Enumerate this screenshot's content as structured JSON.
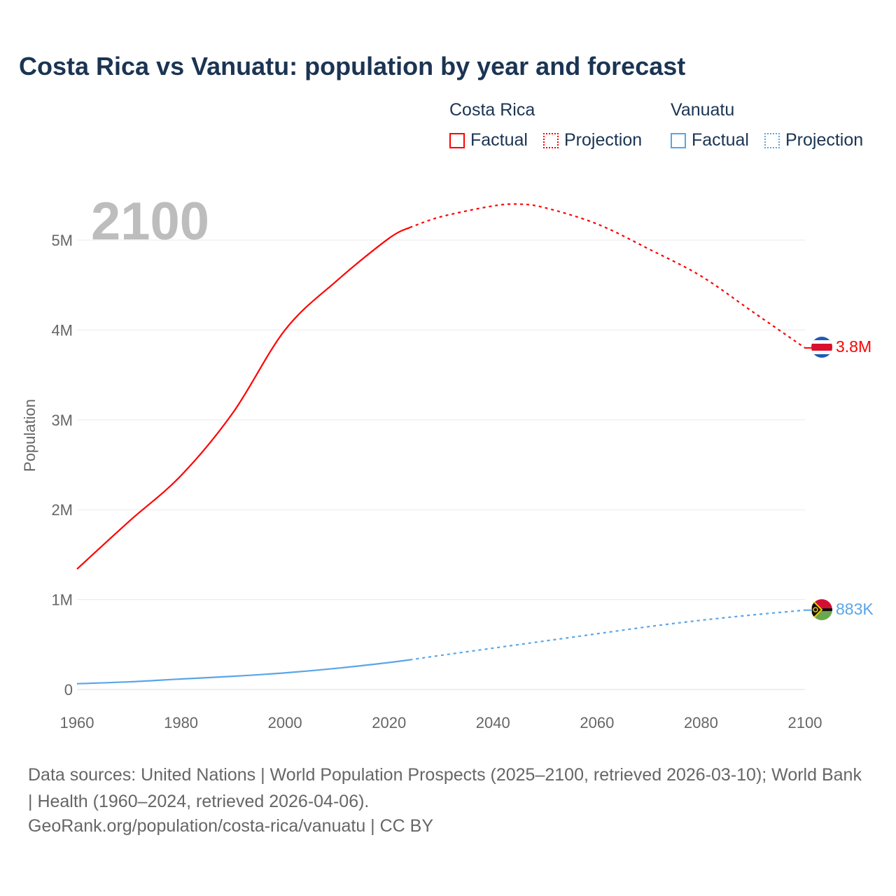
{
  "chart_data": {
    "type": "line",
    "title": "Costa Rica vs Vanuatu: population by year and forecast",
    "xlabel": "",
    "ylabel": "Population",
    "xlim": [
      1960,
      2100
    ],
    "ylim": [
      0,
      5500000
    ],
    "x_ticks": [
      "1960",
      "1980",
      "2000",
      "2020",
      "2040",
      "2060",
      "2080",
      "2100"
    ],
    "y_ticks": [
      {
        "v": 0,
        "label": "0"
      },
      {
        "v": 1000000,
        "label": "1M"
      },
      {
        "v": 2000000,
        "label": "2M"
      },
      {
        "v": 3000000,
        "label": "3M"
      },
      {
        "v": 4000000,
        "label": "4M"
      },
      {
        "v": 5000000,
        "label": "5M"
      }
    ],
    "year_watermark": "2100",
    "grid": true,
    "legend_position": "top-right",
    "legend": {
      "groups": [
        {
          "name": "Costa Rica",
          "color": "#ff0000",
          "items": [
            "Factual",
            "Projection"
          ]
        },
        {
          "name": "Vanuatu",
          "color": "#5aa5e8",
          "items": [
            "Factual",
            "Projection"
          ]
        }
      ]
    },
    "series": [
      {
        "name": "Costa Rica",
        "color": "#ff0000",
        "end_label": "3.8M",
        "factual": {
          "x": [
            1960,
            1970,
            1980,
            1990,
            2000,
            2010,
            2020,
            2024
          ],
          "y": [
            1340000,
            1870000,
            2380000,
            3080000,
            4000000,
            4550000,
            5020000,
            5140000
          ]
        },
        "projection": {
          "x": [
            2024,
            2030,
            2040,
            2045,
            2050,
            2060,
            2070,
            2080,
            2090,
            2100
          ],
          "y": [
            5140000,
            5260000,
            5380000,
            5400000,
            5360000,
            5180000,
            4900000,
            4600000,
            4200000,
            3800000
          ]
        }
      },
      {
        "name": "Vanuatu",
        "color": "#5aa5e8",
        "end_label": "883K",
        "factual": {
          "x": [
            1960,
            1970,
            1980,
            1990,
            2000,
            2010,
            2020,
            2024
          ],
          "y": [
            64000,
            85000,
            117000,
            147000,
            185000,
            236000,
            300000,
            330000
          ]
        },
        "projection": {
          "x": [
            2024,
            2030,
            2040,
            2050,
            2060,
            2070,
            2080,
            2090,
            2100
          ],
          "y": [
            330000,
            380000,
            460000,
            540000,
            620000,
            700000,
            770000,
            830000,
            883000
          ]
        }
      }
    ]
  },
  "footer": {
    "source": "Data sources: United Nations | World Population Prospects (2025–2100, retrieved 2026-03-10); World Bank | Health (1960–2024, retrieved 2026-04-06).",
    "url": "GeoRank.org/population/costa-rica/vanuatu | CC BY"
  }
}
